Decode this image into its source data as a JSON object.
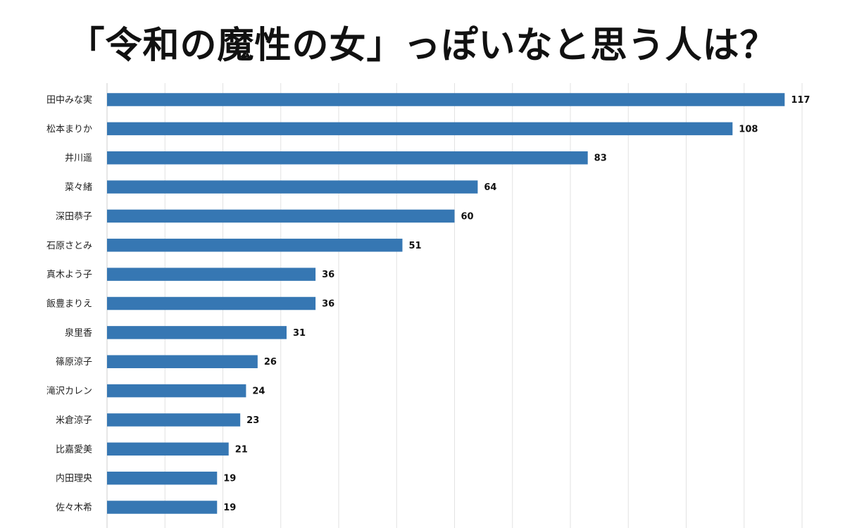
{
  "title": "「令和の魔性の女」っぽいなと思う人は？",
  "colors": {
    "bar": "#3677b3",
    "grid": "#e2e2e2",
    "axis": "#cfcfcf"
  },
  "chart_data": {
    "type": "bar",
    "orientation": "horizontal",
    "title": "「令和の魔性の女」っぽいなと思う人は？",
    "categories": [
      "田中みな実",
      "松本まりか",
      "井川遥",
      "菜々緒",
      "深田恭子",
      "石原さとみ",
      "真木よう子",
      "飯豊まりえ",
      "泉里香",
      "篠原涼子",
      "滝沢カレン",
      "米倉涼子",
      "比嘉愛美",
      "内田理央",
      "佐々木希"
    ],
    "values": [
      117,
      108,
      83,
      64,
      60,
      51,
      36,
      36,
      31,
      26,
      24,
      23,
      21,
      19,
      19
    ],
    "xlim": [
      0,
      120
    ],
    "grid": true,
    "data_labels": true
  }
}
